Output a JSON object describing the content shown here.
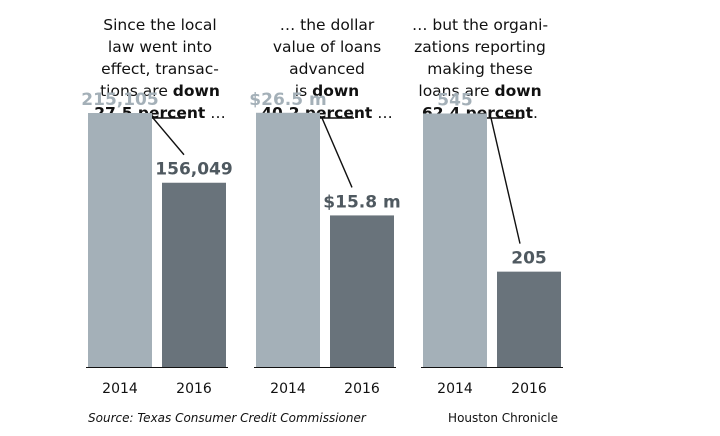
{
  "chart_data": [
    {
      "type": "bar",
      "categories": [
        "2014",
        "2016"
      ],
      "values": [
        215105,
        156049
      ],
      "value_labels": [
        "215,105",
        "156,049"
      ],
      "ylim": [
        0,
        260000
      ],
      "callout": [
        "Since the local",
        "law went into",
        "effect, transac-",
        "tions are |down|",
        "|27.5 percent| …"
      ]
    },
    {
      "type": "bar",
      "categories": [
        "2014",
        "2016"
      ],
      "values": [
        26.5,
        15.8
      ],
      "value_labels": [
        "$26.5 m",
        "$15.8 m"
      ],
      "ylim": [
        0,
        32
      ],
      "callout": [
        "… the dollar",
        "value of loans",
        "advanced",
        "is |down|",
        "|40.2 percent| …"
      ]
    },
    {
      "type": "bar",
      "categories": [
        "2014",
        "2016"
      ],
      "values": [
        545,
        205
      ],
      "value_labels": [
        "545",
        "205"
      ],
      "ylim": [
        0,
        660
      ],
      "callout": [
        "… but the organi-",
        "zations reporting",
        "making these",
        "loans are |down|",
        "|62.4 percent|."
      ]
    }
  ],
  "footer": {
    "source": "Source: Texas Consumer Credit Commissioner",
    "credit": "Houston Chronicle"
  },
  "colors": {
    "bar_2014": "#a4b0b8",
    "bar_2016": "#69737b",
    "label_2014": "#a4b0b8",
    "label_2016": "#4f5960",
    "axis": "#111111"
  }
}
